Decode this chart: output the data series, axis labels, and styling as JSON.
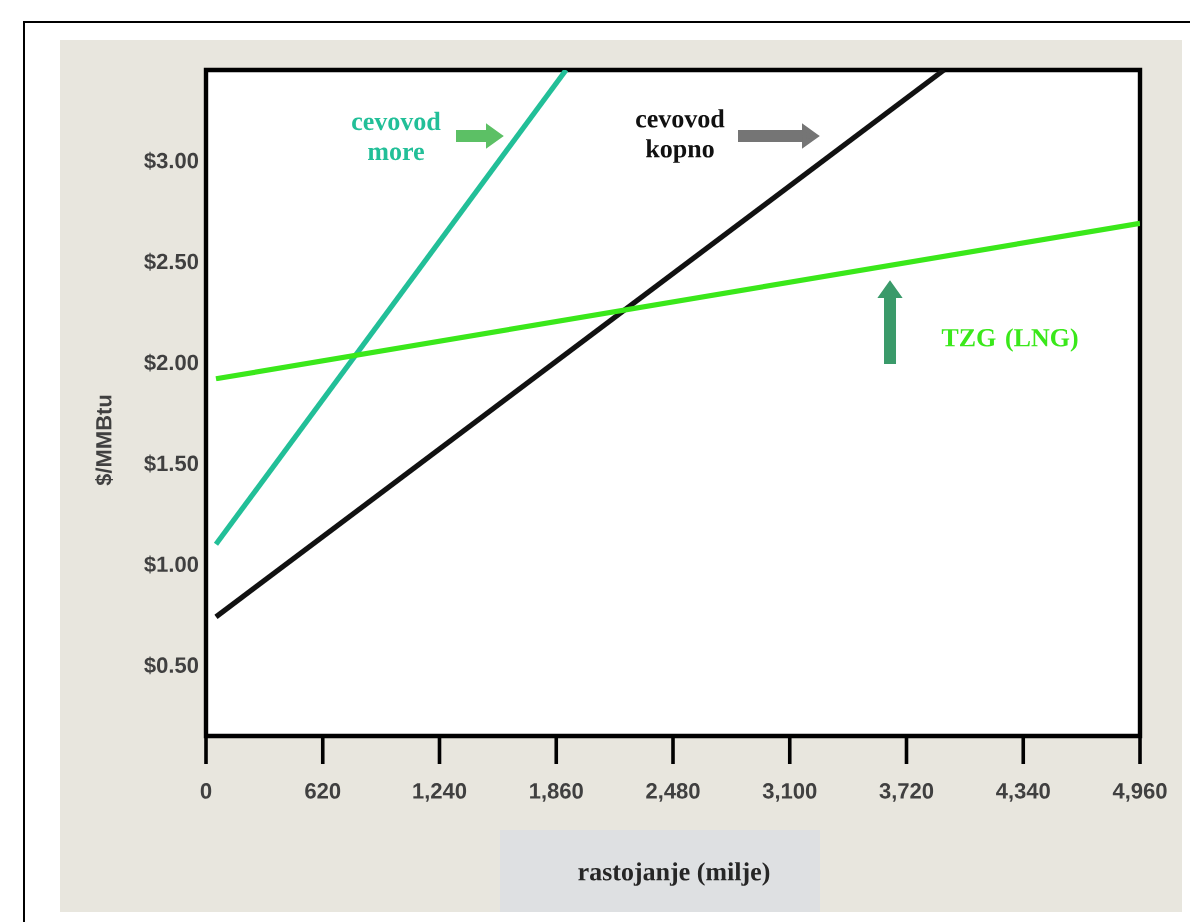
{
  "chart_data": {
    "type": "line",
    "xlabel": "rastojanje (milje)",
    "ylabel": "$/MMBtu",
    "series": [
      {
        "name": "cevovod more",
        "color": "#22bf98",
        "x": [
          53,
          1912
        ],
        "values": [
          1.1,
          3.45
        ]
      },
      {
        "name": "cevovod kopno",
        "color": "#111111",
        "x": [
          53,
          3919
        ],
        "values": [
          0.74,
          3.45
        ]
      },
      {
        "name": "TZG (LNG)",
        "color": "#3ae81a",
        "x": [
          53,
          4960
        ],
        "values": [
          1.92,
          2.69
        ]
      }
    ],
    "xlim": [
      0,
      4960
    ],
    "ylim": [
      0.15,
      3.45
    ],
    "xticks": [
      0,
      620,
      {
        "value": 1240,
        "label": "1,240"
      },
      {
        "value": 1860,
        "label": "1,860"
      },
      {
        "value": 2480,
        "label": "2,480"
      },
      {
        "value": 3100,
        "label": "3,100"
      },
      {
        "value": 3720,
        "label": "3,720"
      },
      {
        "value": 4340,
        "label": "4,340"
      },
      {
        "value": 4960,
        "label": "4,960"
      }
    ],
    "yticks": [
      {
        "value": 0.5,
        "label": "$0.50"
      },
      {
        "value": 1.0,
        "label": "$1.00"
      },
      {
        "value": 1.5,
        "label": "$1.50"
      },
      {
        "value": 2.0,
        "label": "$2.00"
      },
      {
        "value": 2.5,
        "label": "$2.50"
      },
      {
        "value": 3.0,
        "label": "$3.00"
      }
    ],
    "grid": false
  }
}
